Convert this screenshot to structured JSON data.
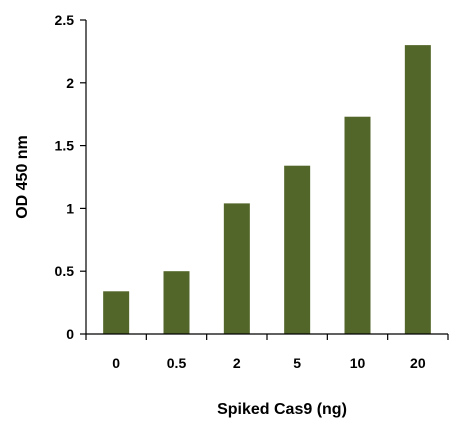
{
  "chart_data": {
    "type": "bar",
    "categories": [
      "0",
      "0.5",
      "2",
      "5",
      "10",
      "20"
    ],
    "values": [
      0.34,
      0.5,
      1.04,
      1.34,
      1.73,
      2.3
    ],
    "xlabel": "Spiked Cas9 (ng)",
    "ylabel": "OD 450 nm",
    "ylim": [
      0,
      2.5
    ],
    "yticks": [
      "0",
      "0.5",
      "1",
      "1.5",
      "2",
      "2.5"
    ],
    "bar_color": "#536629",
    "grid": false,
    "legend": "none"
  }
}
